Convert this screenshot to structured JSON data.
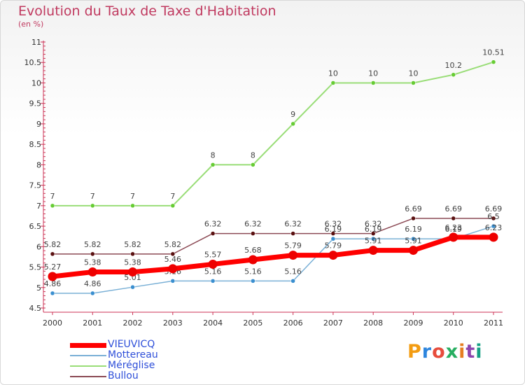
{
  "title": "Evolution du Taux de Taxe d'Habitation",
  "subtitle": "(en %)",
  "logo": {
    "text": "Proxiti",
    "letter_colors": [
      "#f39c12",
      "#2e86de",
      "#e74c3c",
      "#27ae60",
      "#e67e22",
      "#8e44ad",
      "#16a085"
    ]
  },
  "chart_data": {
    "type": "line",
    "x": [
      "2000",
      "2001",
      "2002",
      "2003",
      "2004",
      "2005",
      "2006",
      "2007",
      "2008",
      "2009",
      "2010",
      "2011"
    ],
    "ylim": [
      4.5,
      11
    ],
    "yticks": [
      "4.5",
      "5",
      "5.5",
      "6",
      "6.5",
      "7",
      "7.5",
      "8",
      "8.5",
      "9",
      "9.5",
      "10",
      "10.5",
      "11"
    ],
    "xlabel": "",
    "ylabel": "",
    "legend_position": "bottom-left",
    "grid": false,
    "series": [
      {
        "name": "Méréglise",
        "color": "#99dd77",
        "marker_color": "#66cc33",
        "width": 2,
        "values": [
          7,
          7,
          7,
          7,
          8,
          8,
          9,
          10,
          10,
          10,
          10.2,
          10.51
        ],
        "labels": [
          "7",
          "7",
          "7",
          "7",
          "8",
          "8",
          "9",
          "10",
          "10",
          "10",
          "10.2",
          "10.51"
        ]
      },
      {
        "name": "Bullou",
        "color": "#8c4a55",
        "marker_color": "#5a1010",
        "width": 1.5,
        "values": [
          5.82,
          5.82,
          5.82,
          5.82,
          6.32,
          6.32,
          6.32,
          6.32,
          6.32,
          6.69,
          6.69,
          6.69
        ],
        "labels": [
          "5.82",
          "5.82",
          "5.82",
          "5.82",
          "6.32",
          "6.32",
          "6.32",
          "6.32",
          "6.32",
          "6.69",
          "6.69",
          "6.69"
        ]
      },
      {
        "name": "Mottereau",
        "color": "#7ab0d6",
        "marker_color": "#3a8fd0",
        "width": 1.5,
        "values": [
          4.86,
          4.86,
          5.01,
          5.16,
          5.16,
          5.16,
          5.16,
          6.19,
          6.19,
          6.19,
          6.19,
          6.5
        ],
        "labels": [
          "4.86",
          "4.86",
          "5.01",
          "5.16",
          "5.16",
          "5.16",
          "5.16",
          "6.19",
          "6.19",
          "6.19",
          "6.19",
          "6.5"
        ]
      },
      {
        "name": "VIEUVICQ",
        "color": "#ff0000",
        "marker_color": "#ee0000",
        "width": 7,
        "values": [
          5.27,
          5.38,
          5.38,
          5.46,
          5.57,
          5.68,
          5.79,
          5.79,
          5.91,
          5.91,
          6.23,
          6.23
        ],
        "labels": [
          "5.27",
          "5.38",
          "5.38",
          "5.46",
          "5.57",
          "5.68",
          "5.79",
          "5.79",
          "5.91",
          "5.91",
          "6.23",
          "6.23"
        ]
      }
    ],
    "legend_order": [
      "VIEUVICQ",
      "Mottereau",
      "Méréglise",
      "Bullou"
    ],
    "legend_text_colors": [
      "#2e4fd9",
      "#2e4fd9",
      "#2e4fd9",
      "#2e4fd9"
    ]
  }
}
